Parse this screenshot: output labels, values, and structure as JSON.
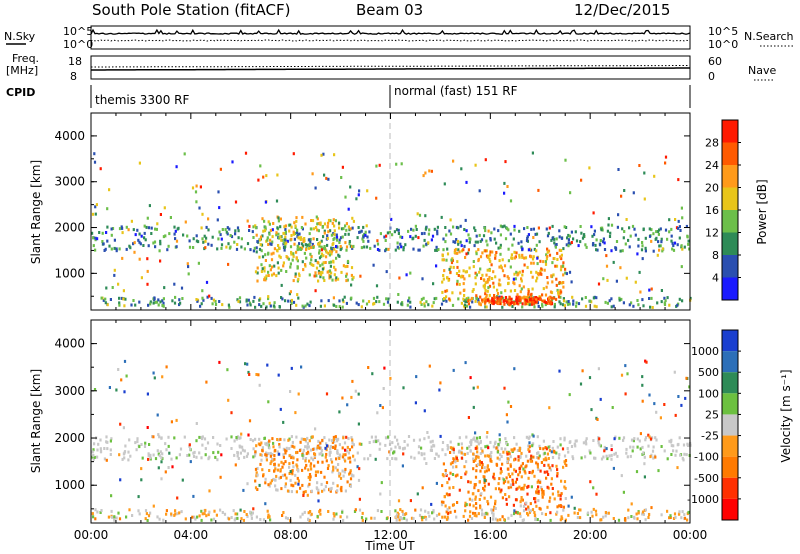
{
  "header": {
    "title": "South Pole Station (fitACF)",
    "beam": "Beam 03",
    "date": "12/Dec/2015"
  },
  "side_labels": {
    "nsky": "N.Sky",
    "freq_line1": "Freq.",
    "freq_line2": "[MHz]",
    "cpid": "CPID",
    "nsearch": "N.Search",
    "nave": "Nave"
  },
  "scales": {
    "nsky_top": "10^5",
    "nsky_bottom": "10^0",
    "nsearch_top": "10^5",
    "nsearch_bottom": "10^0",
    "freq_top": "18",
    "freq_bottom": "8",
    "nave_top": "60",
    "nave_bottom": "0"
  },
  "cpid_modes": [
    {
      "label": "themis 3300 RF",
      "start_hour": 0,
      "end_hour": 12
    },
    {
      "label": "normal (fast) 151 RF",
      "start_hour": 12,
      "end_hour": 24
    }
  ],
  "colors": {
    "power": [
      "#1a1aff",
      "#2a4fb0",
      "#2e8b57",
      "#6cbf4a",
      "#e8c51a",
      "#ff9a1a",
      "#ff5a00",
      "#ff1a00"
    ],
    "velocity": [
      "#1a3fcf",
      "#2c6fb8",
      "#2e8b57",
      "#6cc040",
      "#c8c8c8",
      "#ff9a1a",
      "#ff7a00",
      "#ff3000",
      "#ff0000"
    ],
    "ground_scatter": "#c8c8c8"
  },
  "chart_data": [
    {
      "type": "heatmap",
      "panel": "power",
      "ylabel": "Slant Range [km]",
      "ylim": [
        200,
        4500
      ],
      "yticks": [
        "1000",
        "2000",
        "3000",
        "4000"
      ],
      "xlim": [
        0,
        24
      ],
      "xticks": [
        "00:00",
        "04:00",
        "08:00",
        "12:00",
        "16:00",
        "20:00",
        "00:00"
      ],
      "colorbar_label": "Power [dB]",
      "colorbar_ticks": [
        "4",
        "8",
        "12",
        "16",
        "20",
        "24",
        "28"
      ],
      "clim": [
        0,
        30
      ],
      "features": [
        {
          "name": "echo band 1500-2000 km",
          "x": [
            0,
            24
          ],
          "y": [
            1450,
            2000
          ],
          "value": 8
        },
        {
          "name": "near range clutter",
          "x": [
            0,
            24
          ],
          "y": [
            220,
            450
          ],
          "value": 10
        },
        {
          "name": "morning echoes",
          "x": [
            6.5,
            10.5
          ],
          "y": [
            800,
            2200
          ],
          "value": 16
        },
        {
          "name": "afternoon echoes",
          "x": [
            14,
            19
          ],
          "y": [
            300,
            1500
          ],
          "value": 20
        },
        {
          "name": "afternoon strong core",
          "x": [
            15.5,
            18.5
          ],
          "y": [
            280,
            450
          ],
          "value": 28
        }
      ]
    },
    {
      "type": "heatmap",
      "panel": "velocity",
      "ylabel": "Slant Range [km]",
      "ylim": [
        200,
        4500
      ],
      "yticks": [
        "1000",
        "2000",
        "3000",
        "4000"
      ],
      "xlim": [
        0,
        24
      ],
      "xticks": [
        "00:00",
        "04:00",
        "08:00",
        "12:00",
        "16:00",
        "20:00",
        "00:00"
      ],
      "xlabel": "Time UT",
      "colorbar_label": "Velocity [m s⁻¹]",
      "colorbar_ticks": [
        "1000",
        "500",
        "100",
        "25",
        "-25",
        "-100",
        "-500",
        "-1000"
      ],
      "clim": [
        -1000,
        1000
      ],
      "features": [
        {
          "name": "ground scatter band",
          "x": [
            0,
            24
          ],
          "y": [
            1500,
            2000
          ],
          "value": 0
        },
        {
          "name": "morning echoes",
          "x": [
            6.5,
            10.5
          ],
          "y": [
            800,
            2000
          ],
          "value": -300
        },
        {
          "name": "afternoon echoes",
          "x": [
            14,
            19
          ],
          "y": [
            300,
            1800
          ],
          "value": -400
        },
        {
          "name": "near range",
          "x": [
            0,
            24
          ],
          "y": [
            220,
            450
          ],
          "value": -100
        }
      ]
    }
  ]
}
